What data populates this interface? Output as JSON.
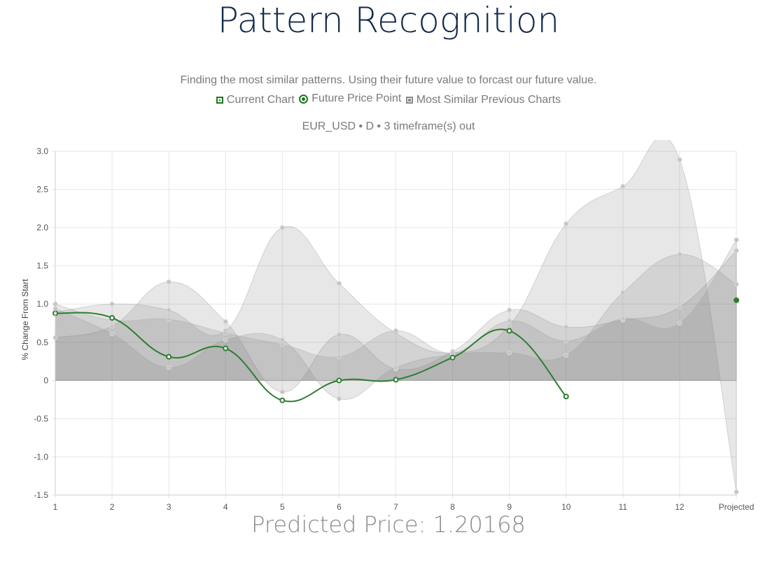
{
  "header": {
    "title": "Pattern Recognition",
    "subtitle": "Finding the most similar patterns. Using their future value to forcast our future value.",
    "meta": "EUR_USD • D • 3 timeframe(s) out"
  },
  "legend": {
    "current": "Current Chart",
    "future": "Future Price Point",
    "similar": "Most Similar Previous Charts"
  },
  "prediction": "Predicted Price: 1.20168",
  "colors": {
    "current": "#2e7d32",
    "similar_fill": "rgba(120,120,120,0.18)",
    "similar_point": "#c4c4c4",
    "grid": "#e6e6e6",
    "axis": "#cccccc"
  },
  "chart_data": {
    "type": "line",
    "categories": [
      "1",
      "2",
      "3",
      "4",
      "5",
      "6",
      "7",
      "8",
      "9",
      "10",
      "11",
      "12",
      "Projected"
    ],
    "ylabel": "% Change From Start",
    "ylim": [
      -1.5,
      3.0
    ],
    "yticks": [
      "3.0",
      "2.5",
      "2.0",
      "1.5",
      "1.0",
      "0.5",
      "0",
      "-0.5",
      "-1.0",
      "-1.5"
    ],
    "ytick_values": [
      3.0,
      2.5,
      2.0,
      1.5,
      1.0,
      0.5,
      0,
      -0.5,
      -1.0,
      -1.5
    ],
    "grid": true,
    "current": [
      0.88,
      0.82,
      0.31,
      0.42,
      -0.26,
      0.0,
      0.01,
      0.3,
      0.65,
      -0.21,
      null,
      null,
      null
    ],
    "future_point": {
      "x": "Projected",
      "y": 1.05
    },
    "similar_series": [
      [
        0.56,
        0.71,
        1.29,
        0.77,
        -0.15,
        0.6,
        0.15,
        0.38,
        0.92,
        0.7,
        0.79,
        0.96,
        1.7
      ],
      [
        0.89,
        1.0,
        0.92,
        0.65,
        2.0,
        1.27,
        0.62,
        0.36,
        0.72,
        2.05,
        2.54,
        2.89,
        -1.46
      ],
      [
        0.94,
        0.61,
        0.17,
        0.53,
        0.53,
        -0.24,
        0.17,
        0.34,
        0.36,
        0.33,
        1.15,
        1.65,
        1.26
      ],
      [
        1.0,
        0.79,
        0.8,
        0.62,
        0.47,
        0.31,
        0.65,
        0.36,
        0.78,
        0.52,
        0.81,
        0.75,
        1.84
      ]
    ]
  }
}
